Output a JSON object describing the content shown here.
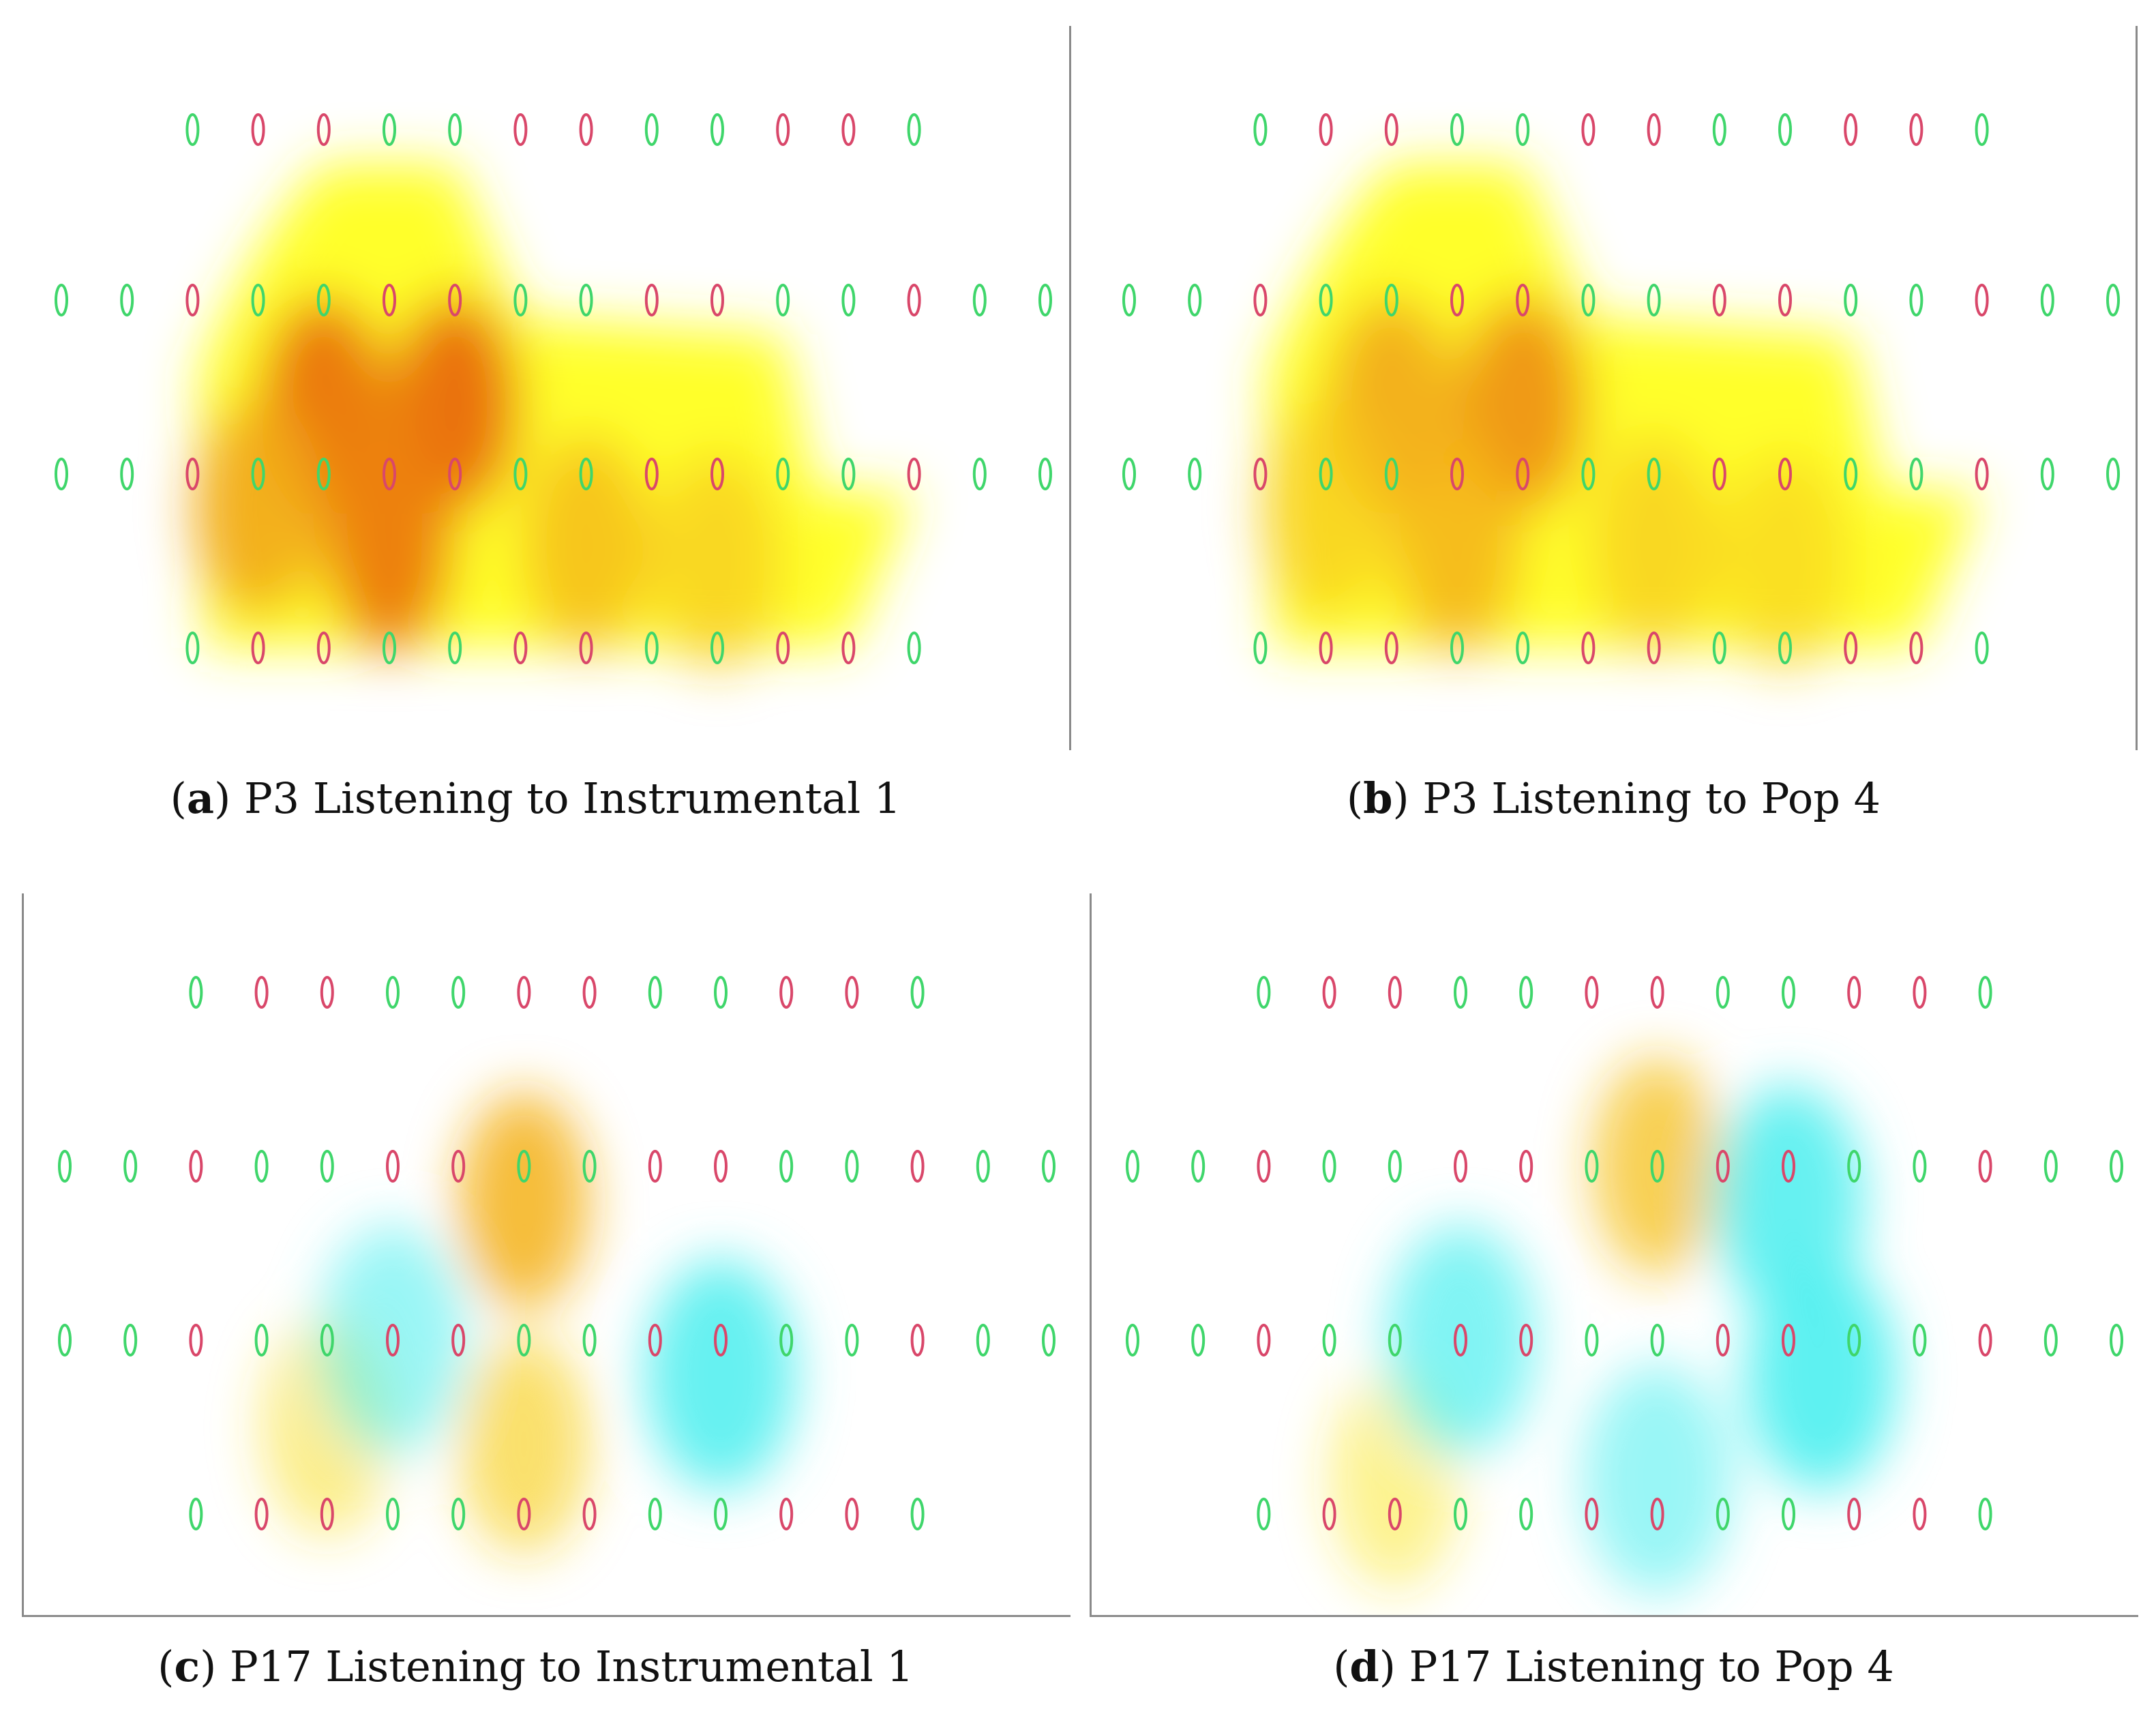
{
  "figure": {
    "panels": [
      {
        "id": "a",
        "letter": "a",
        "caption": "P3 Listening to Instrumental 1"
      },
      {
        "id": "b",
        "letter": "b",
        "caption": "P3 Listening to Pop 4"
      },
      {
        "id": "c",
        "letter": "c",
        "caption": "P17 Listening to Instrumental 1"
      },
      {
        "id": "d",
        "letter": "d",
        "caption": "P17 Listening to Pop 4"
      }
    ]
  },
  "colors": {
    "source_optode": "#d9476a",
    "detector_optode": "#3fd66b",
    "activation_low": "#ffff2a",
    "activation_high": "#e8620a",
    "deactivation": "#55f0f0"
  },
  "chart_data": [
    {
      "type": "heatmap",
      "panel": "a",
      "title": "P3 Listening to Instrumental 1",
      "optode_rows": [
        [
          "D",
          "S",
          "S",
          "D",
          "D",
          "S",
          "S",
          "D",
          "D",
          "S",
          "S",
          "D"
        ],
        [
          "D",
          "D",
          "S",
          "D",
          "D",
          "S",
          "S",
          "D",
          "D",
          "S",
          "S",
          "D",
          "D",
          "S",
          "D",
          "D"
        ],
        [
          "D",
          "D",
          "S",
          "D",
          "D",
          "S",
          "S",
          "D",
          "D",
          "S",
          "S",
          "D",
          "D",
          "S",
          "D",
          "D"
        ],
        [
          "D",
          "S",
          "S",
          "D",
          "D",
          "S",
          "S",
          "D",
          "D",
          "S",
          "S",
          "D"
        ]
      ],
      "activation_blobs": [
        {
          "col": 4,
          "row": 1.6,
          "level": 0.85
        },
        {
          "col": 6,
          "row": 1.6,
          "level": 0.9
        },
        {
          "col": 5,
          "row": 2.4,
          "level": 0.8
        },
        {
          "col": 3,
          "row": 2.2,
          "level": 0.55
        },
        {
          "col": 8,
          "row": 2.4,
          "level": 0.45
        },
        {
          "col": 10,
          "row": 2.5,
          "level": 0.35
        }
      ]
    },
    {
      "type": "heatmap",
      "panel": "b",
      "title": "P3 Listening to Pop 4",
      "optode_rows": [
        [
          "D",
          "S",
          "S",
          "D",
          "D",
          "S",
          "S",
          "D",
          "D",
          "S",
          "S",
          "D"
        ],
        [
          "D",
          "D",
          "S",
          "D",
          "D",
          "S",
          "S",
          "D",
          "D",
          "S",
          "S",
          "D",
          "D",
          "S",
          "D",
          "D"
        ],
        [
          "D",
          "D",
          "S",
          "D",
          "D",
          "S",
          "S",
          "D",
          "D",
          "S",
          "S",
          "D",
          "D",
          "S",
          "D",
          "D"
        ],
        [
          "D",
          "S",
          "S",
          "D",
          "D",
          "S",
          "S",
          "D",
          "D",
          "S",
          "S",
          "D"
        ]
      ],
      "activation_blobs": [
        {
          "col": 4,
          "row": 1.6,
          "level": 0.55
        },
        {
          "col": 6,
          "row": 1.6,
          "level": 0.65
        },
        {
          "col": 5,
          "row": 2.4,
          "level": 0.5
        },
        {
          "col": 3,
          "row": 2.2,
          "level": 0.35
        },
        {
          "col": 8,
          "row": 2.4,
          "level": 0.35
        },
        {
          "col": 10,
          "row": 2.5,
          "level": 0.3
        }
      ]
    },
    {
      "type": "heatmap",
      "panel": "c",
      "title": "P17 Listening to Instrumental 1",
      "optode_rows": [
        [
          "D",
          "S",
          "S",
          "D",
          "D",
          "S",
          "S",
          "D",
          "D",
          "S",
          "S",
          "D"
        ],
        [
          "D",
          "D",
          "S",
          "D",
          "D",
          "S",
          "S",
          "D",
          "D",
          "S",
          "S",
          "D",
          "D",
          "S",
          "D",
          "D"
        ],
        [
          "D",
          "D",
          "S",
          "D",
          "D",
          "S",
          "S",
          "D",
          "D",
          "S",
          "S",
          "D",
          "D",
          "S",
          "D",
          "D"
        ],
        [
          "D",
          "S",
          "S",
          "D",
          "D",
          "S",
          "S",
          "D",
          "D",
          "S",
          "S",
          "D"
        ]
      ],
      "activation_blobs": [
        {
          "col": 7,
          "row": 1.2,
          "level": 0.5
        },
        {
          "col": 7,
          "row": 2.6,
          "level": 0.3
        },
        {
          "col": 4,
          "row": 2.5,
          "level": 0.2
        }
      ],
      "deactivation_blobs": [
        {
          "col": 10,
          "row": 2.2,
          "level": 0.6
        },
        {
          "col": 5,
          "row": 2.0,
          "level": 0.3
        }
      ]
    },
    {
      "type": "heatmap",
      "panel": "d",
      "title": "P17 Listening to Pop 4",
      "optode_rows": [
        [
          "D",
          "S",
          "S",
          "D",
          "D",
          "S",
          "S",
          "D",
          "D",
          "S",
          "S",
          "D"
        ],
        [
          "D",
          "D",
          "S",
          "D",
          "D",
          "S",
          "S",
          "D",
          "D",
          "S",
          "S",
          "D",
          "D",
          "S",
          "D",
          "D"
        ],
        [
          "D",
          "D",
          "S",
          "D",
          "D",
          "S",
          "S",
          "D",
          "D",
          "S",
          "S",
          "D",
          "D",
          "S",
          "D",
          "D"
        ],
        [
          "D",
          "S",
          "S",
          "D",
          "D",
          "S",
          "S",
          "D",
          "D",
          "S",
          "S",
          "D"
        ]
      ],
      "activation_blobs": [
        {
          "col": 8,
          "row": 1.0,
          "level": 0.4
        },
        {
          "col": 4,
          "row": 2.8,
          "level": 0.15
        }
      ],
      "deactivation_blobs": [
        {
          "col": 10,
          "row": 1.2,
          "level": 0.6
        },
        {
          "col": 10.5,
          "row": 2.2,
          "level": 0.65
        },
        {
          "col": 5,
          "row": 2.0,
          "level": 0.45
        },
        {
          "col": 8,
          "row": 2.8,
          "level": 0.3
        }
      ]
    }
  ]
}
